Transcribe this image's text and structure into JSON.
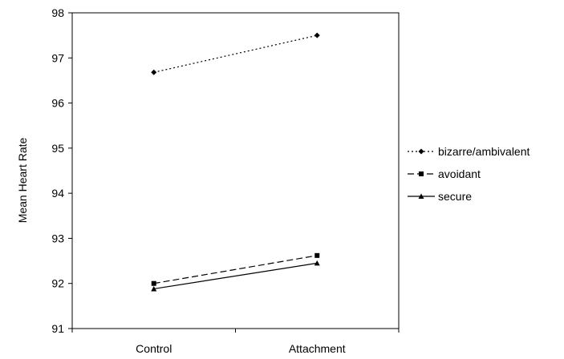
{
  "chart_data": {
    "type": "line",
    "title": "",
    "xlabel": "",
    "ylabel": "Mean Heart Rate",
    "categories": [
      "Control",
      "Attachment"
    ],
    "ylim": [
      91,
      98
    ],
    "yticks": [
      "91",
      "92",
      "93",
      "94",
      "95",
      "96",
      "97",
      "98"
    ],
    "grid": false,
    "legend_position": "right",
    "series": [
      {
        "name": "bizarre/ambivalent",
        "values": [
          96.68,
          97.5
        ],
        "line_style": "dotted",
        "marker": "diamond",
        "color": "#000000"
      },
      {
        "name": "avoidant",
        "values": [
          92.0,
          92.62
        ],
        "line_style": "dashed",
        "marker": "square",
        "color": "#000000"
      },
      {
        "name": "secure",
        "values": [
          91.88,
          92.45
        ],
        "line_style": "solid",
        "marker": "triangle",
        "color": "#000000"
      }
    ]
  }
}
